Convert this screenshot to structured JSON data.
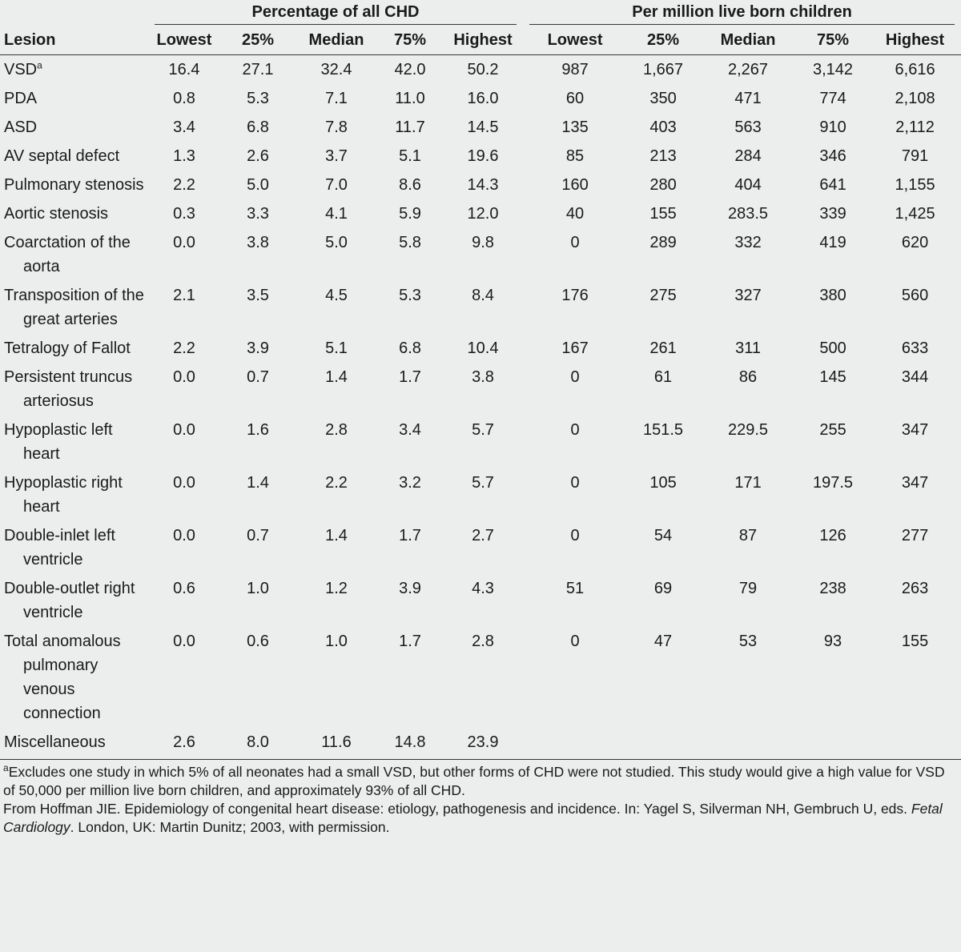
{
  "table": {
    "group_headers": [
      "Percentage of all CHD",
      "Per million live born children"
    ],
    "columns": [
      "Lesion",
      "Lowest",
      "25%",
      "Median",
      "75%",
      "Highest",
      "Lowest",
      "25%",
      "Median",
      "75%",
      "Highest"
    ],
    "rows": [
      {
        "lesion": "VSD",
        "note_mark": "a",
        "values": [
          "16.4",
          "27.1",
          "32.4",
          "42.0",
          "50.2",
          "987",
          "1,667",
          "2,267",
          "3,142",
          "6,616"
        ]
      },
      {
        "lesion": "PDA",
        "values": [
          "0.8",
          "5.3",
          "7.1",
          "11.0",
          "16.0",
          "60",
          "350",
          "471",
          "774",
          "2,108"
        ]
      },
      {
        "lesion": "ASD",
        "values": [
          "3.4",
          "6.8",
          "7.8",
          "11.7",
          "14.5",
          "135",
          "403",
          "563",
          "910",
          "2,112"
        ]
      },
      {
        "lesion": "AV septal defect",
        "values": [
          "1.3",
          "2.6",
          "3.7",
          "5.1",
          "19.6",
          "85",
          "213",
          "284",
          "346",
          "791"
        ]
      },
      {
        "lesion": "Pulmonary stenosis",
        "values": [
          "2.2",
          "5.0",
          "7.0",
          "8.6",
          "14.3",
          "160",
          "280",
          "404",
          "641",
          "1,155"
        ]
      },
      {
        "lesion": "Aortic stenosis",
        "values": [
          "0.3",
          "3.3",
          "4.1",
          "5.9",
          "12.0",
          "40",
          "155",
          "283.5",
          "339",
          "1,425"
        ]
      },
      {
        "lesion": "Coarctation of the aorta",
        "values": [
          "0.0",
          "3.8",
          "5.0",
          "5.8",
          "9.8",
          "0",
          "289",
          "332",
          "419",
          "620"
        ]
      },
      {
        "lesion": "Transposition of the great arteries",
        "values": [
          "2.1",
          "3.5",
          "4.5",
          "5.3",
          "8.4",
          "176",
          "275",
          "327",
          "380",
          "560"
        ]
      },
      {
        "lesion": "Tetralogy of Fallot",
        "values": [
          "2.2",
          "3.9",
          "5.1",
          "6.8",
          "10.4",
          "167",
          "261",
          "311",
          "500",
          "633"
        ]
      },
      {
        "lesion": "Persistent truncus arteriosus",
        "values": [
          "0.0",
          "0.7",
          "1.4",
          "1.7",
          "3.8",
          "0",
          "61",
          "86",
          "145",
          "344"
        ]
      },
      {
        "lesion": "Hypoplastic left heart",
        "values": [
          "0.0",
          "1.6",
          "2.8",
          "3.4",
          "5.7",
          "0",
          "151.5",
          "229.5",
          "255",
          "347"
        ]
      },
      {
        "lesion": "Hypoplastic right heart",
        "values": [
          "0.0",
          "1.4",
          "2.2",
          "3.2",
          "5.7",
          "0",
          "105",
          "171",
          "197.5",
          "347"
        ]
      },
      {
        "lesion": "Double-inlet left ventricle",
        "values": [
          "0.0",
          "0.7",
          "1.4",
          "1.7",
          "2.7",
          "0",
          "54",
          "87",
          "126",
          "277"
        ]
      },
      {
        "lesion": "Double-outlet right ventricle",
        "values": [
          "0.6",
          "1.0",
          "1.2",
          "3.9",
          "4.3",
          "51",
          "69",
          "79",
          "238",
          "263"
        ]
      },
      {
        "lesion": "Total anomalous pulmonary venous connection",
        "values": [
          "0.0",
          "0.6",
          "1.0",
          "1.7",
          "2.8",
          "0",
          "47",
          "53",
          "93",
          "155"
        ]
      },
      {
        "lesion": "Miscellaneous",
        "values": [
          "2.6",
          "8.0",
          "11.6",
          "14.8",
          "23.9"
        ]
      }
    ]
  },
  "footnotes": {
    "note": {
      "mark": "a",
      "text": "Excludes one study in which 5% of all neonates had a small VSD, but other forms of CHD were not studied. This study would give a high value for VSD of 50,000 per million live born children, and approximately 93% of all CHD."
    },
    "source": [
      "From Hoffman JIE. Epidemiology of congenital heart disease: etiology, pathogenesis and incidence. In: Yagel S, Silverman NH, Gembruch U, eds. ",
      "Fetal Cardiology",
      ". London, UK: Martin Dunitz; 2003, with permission."
    ]
  }
}
